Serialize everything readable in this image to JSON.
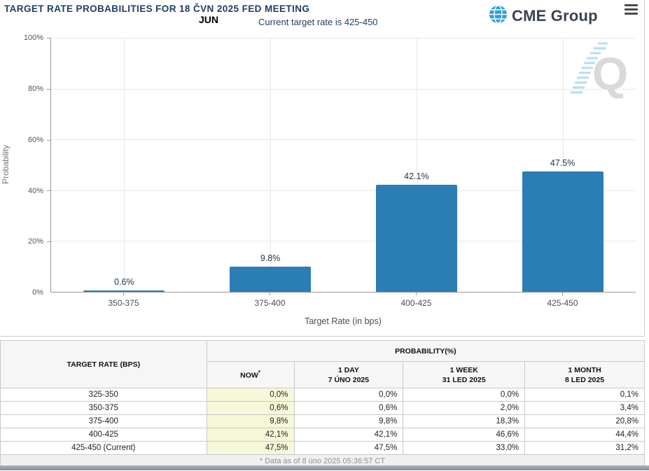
{
  "header": {
    "title": "TARGET RATE PROBABILITIES FOR 18 ČVN 2025 FED MEETING",
    "month_label": "JUN",
    "subtitle": "Current target rate is 425-450",
    "logo_text": "CME Group",
    "colors": {
      "title_navy": "#1e3f63",
      "logo_globe_blue": "#2e9fd6"
    }
  },
  "chart_data": {
    "type": "bar",
    "categories": [
      "350-375",
      "375-400",
      "400-425",
      "425-450"
    ],
    "values": [
      0.6,
      9.8,
      42.1,
      47.5
    ],
    "value_labels": [
      "0.6%",
      "9.8%",
      "42.1%",
      "47.5%"
    ],
    "xlabel": "Target Rate (in bps)",
    "ylabel": "Probability",
    "ylim": [
      0,
      100
    ],
    "yticks": [
      "0%",
      "20%",
      "40%",
      "60%",
      "80%",
      "100%"
    ],
    "bar_color": "#2a7db5",
    "grid": true,
    "legend": "none",
    "watermark_letter": "Q"
  },
  "table": {
    "rate_header": "TARGET RATE (BPS)",
    "probability_header": "PROBABILITY(%)",
    "columns": [
      {
        "label": "NOW",
        "sup": "*",
        "sub": ""
      },
      {
        "label": "1 DAY",
        "sub": "7 ÚNO 2025"
      },
      {
        "label": "1 WEEK",
        "sub": "31 LED 2025"
      },
      {
        "label": "1 MONTH",
        "sub": "8 LED 2025"
      }
    ],
    "rows": [
      {
        "rate": "325-350",
        "now": "0,0%",
        "day": "0,0%",
        "week": "0,0%",
        "month": "0,1%"
      },
      {
        "rate": "350-375",
        "now": "0,6%",
        "day": "0,6%",
        "week": "2,0%",
        "month": "3,4%"
      },
      {
        "rate": "375-400",
        "now": "9,8%",
        "day": "9,8%",
        "week": "18,3%",
        "month": "20,8%"
      },
      {
        "rate": "400-425",
        "now": "42,1%",
        "day": "42,1%",
        "week": "46,6%",
        "month": "44,4%"
      },
      {
        "rate": "425-450 (Current)",
        "now": "47,5%",
        "day": "47,5%",
        "week": "33,0%",
        "month": "31,2%"
      }
    ],
    "footnote": "* Data as of 8 úno 2025 05:36:57 CT",
    "now_col_bg": "#f7f7d9"
  }
}
